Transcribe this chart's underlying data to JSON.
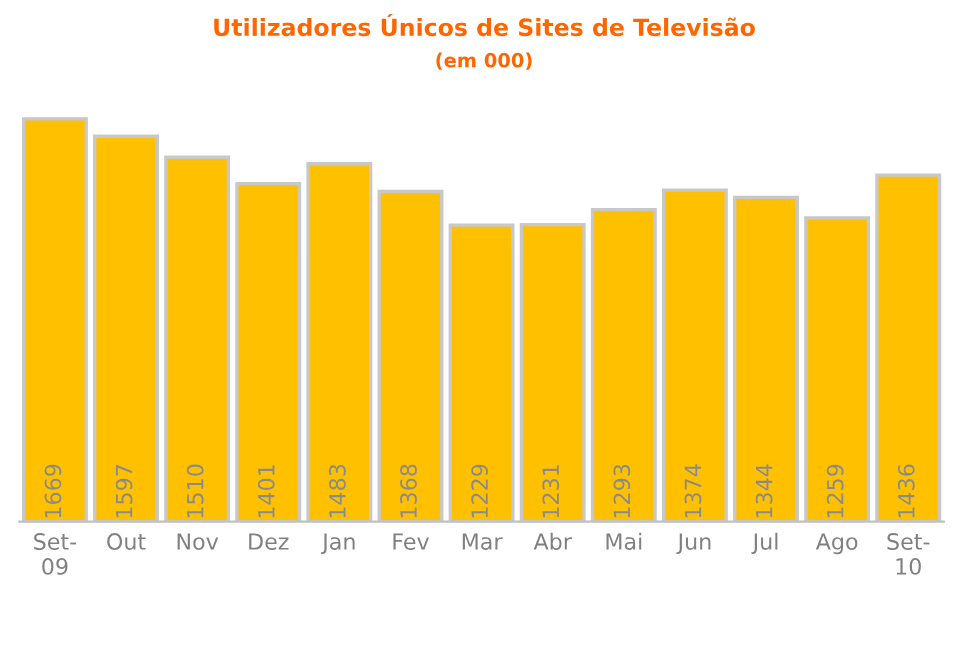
{
  "chart_data": {
    "type": "bar",
    "title": "Utilizadores Únicos de Sites de Televisão",
    "subtitle": "(em 000)",
    "categories": [
      "Set-09",
      "Out",
      "Nov",
      "Dez",
      "Jan",
      "Fev",
      "Mar",
      "Abr",
      "Mai",
      "Jun",
      "Jul",
      "Ago",
      "Set-10"
    ],
    "values": [
      1669,
      1597,
      1510,
      1401,
      1483,
      1368,
      1229,
      1231,
      1293,
      1374,
      1344,
      1259,
      1436
    ],
    "color": "#ffc000",
    "data_labels": true,
    "grid": false,
    "legend": false
  }
}
